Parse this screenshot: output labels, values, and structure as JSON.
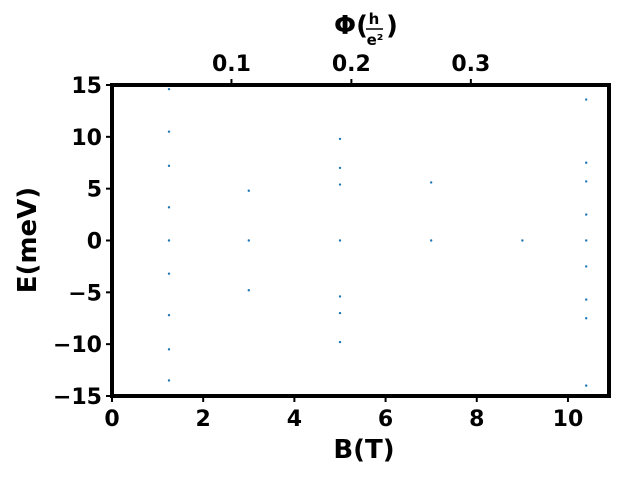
{
  "chart_data": {
    "type": "scatter",
    "xlabel": "B(T)",
    "ylabel": "E(meV)",
    "top_axis_label": {
      "symbol": "Φ(",
      "numerator": "h",
      "denominator": "e²",
      "close": ")"
    },
    "xlim": [
      0,
      10.9
    ],
    "ylim": [
      -15,
      15
    ],
    "x_ticks": [
      0,
      2,
      4,
      6,
      8,
      10
    ],
    "x_tick_labels": [
      "0",
      "2",
      "4",
      "6",
      "8",
      "10"
    ],
    "y_ticks": [
      -15,
      -10,
      -5,
      0,
      5,
      10,
      15
    ],
    "y_tick_labels": [
      "−15",
      "−10",
      "−5",
      "0",
      "5",
      "10",
      "15"
    ],
    "top_ticks_B": [
      2.62,
      5.25,
      7.87
    ],
    "top_tick_labels": [
      "0.1",
      "0.2",
      "0.3"
    ],
    "x_range_data": [
      1.25,
      10.45
    ],
    "grid": false,
    "legend": "none",
    "marker_color": "#1f77b4",
    "series": [
      {
        "values": [
          {
            "B": 1.25,
            "E": 0.0
          },
          {
            "B": 3.0,
            "E": 0.0
          },
          {
            "B": 5.0,
            "E": 0.0
          },
          {
            "B": 7.0,
            "E": 0.0
          },
          {
            "B": 9.0,
            "E": 0.0
          },
          {
            "B": 10.4,
            "E": 0.0
          },
          {
            "B": 1.25,
            "E": 3.2
          },
          {
            "B": 3.0,
            "E": 4.8
          },
          {
            "B": 5.0,
            "E": 5.4
          },
          {
            "B": 7.0,
            "E": 5.6
          },
          {
            "B": 10.4,
            "E": 5.7
          },
          {
            "B": 1.25,
            "E": 7.2
          },
          {
            "B": 5.0,
            "E": 7.0
          },
          {
            "B": 10.4,
            "E": 7.5
          },
          {
            "B": 1.25,
            "E": 10.5
          },
          {
            "B": 5.0,
            "E": 9.8
          },
          {
            "B": 1.25,
            "E": 14.6
          },
          {
            "B": 10.4,
            "E": 13.6
          },
          {
            "B": 1.25,
            "E": -3.2
          },
          {
            "B": 3.0,
            "E": -4.8
          },
          {
            "B": 5.0,
            "E": -5.4
          },
          {
            "B": 10.4,
            "E": -5.7
          },
          {
            "B": 1.25,
            "E": -7.2
          },
          {
            "B": 5.0,
            "E": -7.0
          },
          {
            "B": 10.4,
            "E": -7.5
          },
          {
            "B": 1.25,
            "E": -10.5
          },
          {
            "B": 5.0,
            "E": -9.8
          },
          {
            "B": 1.25,
            "E": -13.5
          },
          {
            "B": 10.4,
            "E": -14.0
          },
          {
            "B": 10.4,
            "E": 2.5
          },
          {
            "B": 10.4,
            "E": -2.5
          }
        ]
      }
    ]
  }
}
